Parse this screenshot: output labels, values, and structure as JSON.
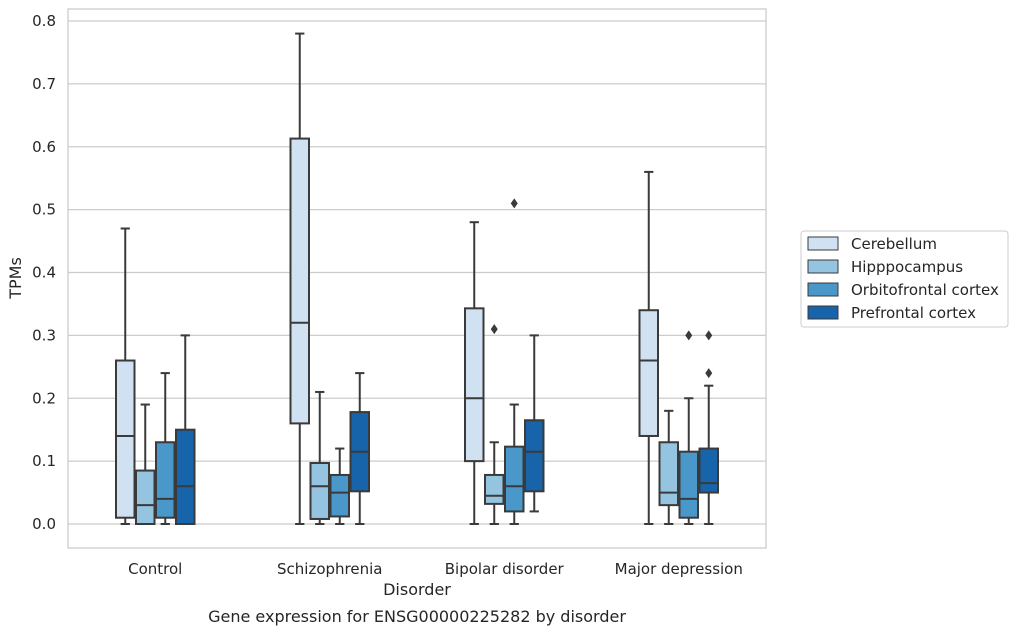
{
  "chart_data": {
    "type": "box",
    "caption": "Gene expression for ENSG00000225282 by disorder",
    "xlabel": "Disorder",
    "ylabel": "TPMs",
    "ylim": [
      -0.04,
      0.82
    ],
    "yticks": [
      0.0,
      0.1,
      0.2,
      0.3,
      0.4,
      0.5,
      0.6,
      0.7,
      0.8
    ],
    "ytick_labels": [
      "0.0",
      "0.1",
      "0.2",
      "0.3",
      "0.4",
      "0.5",
      "0.6",
      "0.7",
      "0.8"
    ],
    "grid": "horizontal",
    "legend_position": "right",
    "categories": [
      "Control",
      "Schizophrenia",
      "Bipolar disorder",
      "Major depression"
    ],
    "series": [
      {
        "name": "Cerebellum",
        "color": "#d0e1f2",
        "boxes": [
          {
            "min": 0.0,
            "q1": 0.01,
            "median": 0.14,
            "q3": 0.26,
            "max": 0.47,
            "outliers": []
          },
          {
            "min": 0.0,
            "q1": 0.16,
            "median": 0.32,
            "q3": 0.613,
            "max": 0.78,
            "outliers": []
          },
          {
            "min": 0.0,
            "q1": 0.1,
            "median": 0.2,
            "q3": 0.343,
            "max": 0.48,
            "outliers": []
          },
          {
            "min": 0.0,
            "q1": 0.14,
            "median": 0.26,
            "q3": 0.34,
            "max": 0.56,
            "outliers": []
          }
        ]
      },
      {
        "name": "Hipppocampus",
        "color": "#94c4df",
        "boxes": [
          {
            "min": 0.0,
            "q1": 0.0,
            "median": 0.03,
            "q3": 0.085,
            "max": 0.19,
            "outliers": []
          },
          {
            "min": 0.0,
            "q1": 0.008,
            "median": 0.06,
            "q3": 0.097,
            "max": 0.21,
            "outliers": []
          },
          {
            "min": 0.0,
            "q1": 0.032,
            "median": 0.045,
            "q3": 0.078,
            "max": 0.13,
            "outliers": [
              0.31
            ]
          },
          {
            "min": 0.0,
            "q1": 0.03,
            "median": 0.05,
            "q3": 0.13,
            "max": 0.18,
            "outliers": []
          }
        ]
      },
      {
        "name": "Orbitofrontal cortex",
        "color": "#4a98c9",
        "boxes": [
          {
            "min": 0.0,
            "q1": 0.01,
            "median": 0.04,
            "q3": 0.13,
            "max": 0.24,
            "outliers": []
          },
          {
            "min": 0.0,
            "q1": 0.012,
            "median": 0.05,
            "q3": 0.078,
            "max": 0.12,
            "outliers": []
          },
          {
            "min": 0.0,
            "q1": 0.02,
            "median": 0.06,
            "q3": 0.123,
            "max": 0.19,
            "outliers": [
              0.51
            ]
          },
          {
            "min": 0.0,
            "q1": 0.01,
            "median": 0.04,
            "q3": 0.115,
            "max": 0.2,
            "outliers": [
              0.3
            ]
          }
        ]
      },
      {
        "name": "Prefrontal cortex",
        "color": "#1764ab",
        "boxes": [
          {
            "min": 0.0,
            "q1": 0.0,
            "median": 0.06,
            "q3": 0.15,
            "max": 0.3,
            "outliers": []
          },
          {
            "min": 0.0,
            "q1": 0.052,
            "median": 0.115,
            "q3": 0.178,
            "max": 0.24,
            "outliers": []
          },
          {
            "min": 0.02,
            "q1": 0.052,
            "median": 0.115,
            "q3": 0.165,
            "max": 0.3,
            "outliers": []
          },
          {
            "min": 0.0,
            "q1": 0.05,
            "median": 0.065,
            "q3": 0.12,
            "max": 0.22,
            "outliers": [
              0.24,
              0.3
            ]
          }
        ]
      }
    ]
  }
}
